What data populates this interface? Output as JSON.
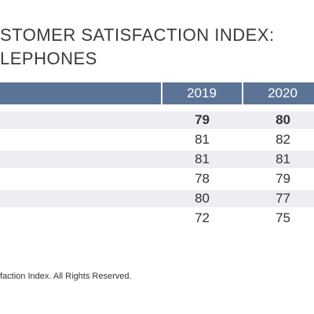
{
  "title": [
    "STOMER SATISFACTION INDEX:",
    "LEPHONES"
  ],
  "table": {
    "header": [
      "2019",
      "2020"
    ],
    "rows": [
      [
        79,
        80
      ],
      [
        81,
        82
      ],
      [
        81,
        81
      ],
      [
        78,
        79
      ],
      [
        80,
        77
      ],
      [
        72,
        75
      ]
    ]
  },
  "footer": "faction Index. All Rights Reserved."
}
